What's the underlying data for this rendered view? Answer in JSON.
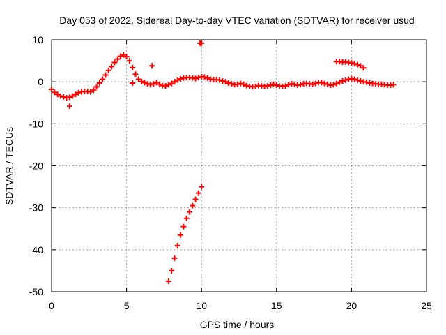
{
  "chart_data": {
    "type": "scatter",
    "title": "Day 053 of 2022, Sidereal Day-to-day VTEC variation (SDTVAR) for receiver usud",
    "xlabel": "GPS time / hours",
    "ylabel": "SDTVAR / TECUs",
    "xlim": [
      0,
      25
    ],
    "ylim": [
      -50,
      10
    ],
    "xticks": [
      0,
      5,
      10,
      15,
      20,
      25
    ],
    "yticks": [
      -50,
      -40,
      -30,
      -20,
      -10,
      0,
      10
    ],
    "grid": true,
    "marker": "+",
    "series": [
      {
        "name": "main trace",
        "color": "#ff0000",
        "x": [
          0.0,
          0.2,
          0.4,
          0.6,
          0.8,
          1.0,
          1.2,
          1.4,
          1.6,
          1.8,
          2.0,
          2.2,
          2.4,
          2.6,
          2.8,
          3.0,
          3.2,
          3.4,
          3.6,
          3.8,
          4.0,
          4.2,
          4.4,
          4.6,
          4.8,
          5.0,
          5.2,
          5.4,
          5.6,
          5.8,
          6.0,
          6.2,
          6.4,
          6.6,
          6.8,
          7.0,
          7.2,
          7.4,
          7.6,
          7.8,
          8.0,
          8.2,
          8.4,
          8.6,
          8.8,
          9.0,
          9.2,
          9.4,
          9.6,
          9.8,
          10.0,
          10.2,
          10.4,
          10.6,
          10.8,
          11.0,
          11.2,
          11.4,
          11.6,
          11.8,
          12.0,
          12.2,
          12.4,
          12.6,
          12.8,
          13.0,
          13.2,
          13.4,
          13.6,
          13.8,
          14.0,
          14.2,
          14.4,
          14.6,
          14.8,
          15.0,
          15.2,
          15.4,
          15.6,
          15.8,
          16.0,
          16.2,
          16.4,
          16.6,
          16.8,
          17.0,
          17.2,
          17.4,
          17.6,
          17.8,
          18.0,
          18.2,
          18.4,
          18.6,
          18.8,
          19.0,
          19.2,
          19.4,
          19.6,
          19.8,
          20.0,
          20.2,
          20.4,
          20.6,
          20.8,
          21.0,
          21.2,
          21.4,
          21.6,
          21.8,
          22.0,
          22.2,
          22.4,
          22.6,
          22.8
        ],
        "y": [
          -1.8,
          -2.5,
          -3.0,
          -3.4,
          -3.6,
          -3.8,
          -3.7,
          -3.4,
          -3.0,
          -2.6,
          -2.4,
          -2.3,
          -2.3,
          -2.4,
          -2.0,
          -1.2,
          -0.3,
          0.6,
          1.6,
          2.7,
          3.6,
          4.6,
          5.4,
          6.1,
          6.4,
          6.0,
          5.0,
          3.4,
          1.8,
          0.6,
          0.1,
          -0.2,
          -0.5,
          -0.7,
          -0.5,
          -0.2,
          -0.6,
          -0.9,
          -1.0,
          -0.7,
          -0.4,
          0.0,
          0.4,
          0.7,
          0.9,
          1.0,
          1.0,
          0.9,
          0.8,
          1.0,
          1.2,
          1.1,
          0.9,
          0.6,
          0.5,
          0.5,
          0.4,
          0.2,
          0.0,
          -0.3,
          -0.5,
          -0.7,
          -0.6,
          -0.4,
          -0.6,
          -0.9,
          -1.1,
          -1.2,
          -1.1,
          -0.9,
          -1.0,
          -1.1,
          -1.0,
          -0.8,
          -0.6,
          -0.8,
          -1.0,
          -1.1,
          -1.0,
          -0.7,
          -0.5,
          -0.6,
          -0.8,
          -0.7,
          -0.5,
          -0.4,
          -0.5,
          -0.6,
          -0.4,
          -0.2,
          -0.2,
          -0.4,
          -0.6,
          -0.8,
          -0.7,
          -0.4,
          -0.1,
          0.2,
          0.4,
          0.6,
          0.7,
          0.6,
          0.4,
          0.2,
          0.0,
          -0.1,
          -0.3,
          -0.4,
          -0.5,
          -0.6,
          -0.6,
          -0.7,
          -0.8,
          -0.8,
          -0.7
        ]
      },
      {
        "name": "upper arc near 19-21h",
        "color": "#ff0000",
        "x": [
          19.0,
          19.2,
          19.4,
          19.6,
          19.8,
          20.0,
          20.2,
          20.4,
          20.6,
          20.8
        ],
        "y": [
          4.8,
          4.8,
          4.7,
          4.7,
          4.6,
          4.5,
          4.3,
          4.1,
          3.8,
          3.3
        ]
      },
      {
        "name": "outlier drop",
        "color": "#ff0000",
        "x": [
          7.8,
          8.0,
          8.2,
          8.4,
          8.6,
          8.8,
          9.0,
          9.2,
          9.4,
          9.6,
          9.8,
          10.0
        ],
        "y": [
          -47.5,
          -45.0,
          -42.0,
          -39.0,
          -36.5,
          -34.5,
          -32.5,
          -31.0,
          -29.5,
          -28.0,
          -26.5,
          -25.0
        ]
      },
      {
        "name": "isolated points",
        "color": "#ff0000",
        "x": [
          9.9,
          10.0,
          5.4,
          6.7,
          1.2
        ],
        "y": [
          9.2,
          9.2,
          -0.3,
          3.8,
          -5.8
        ]
      }
    ]
  }
}
